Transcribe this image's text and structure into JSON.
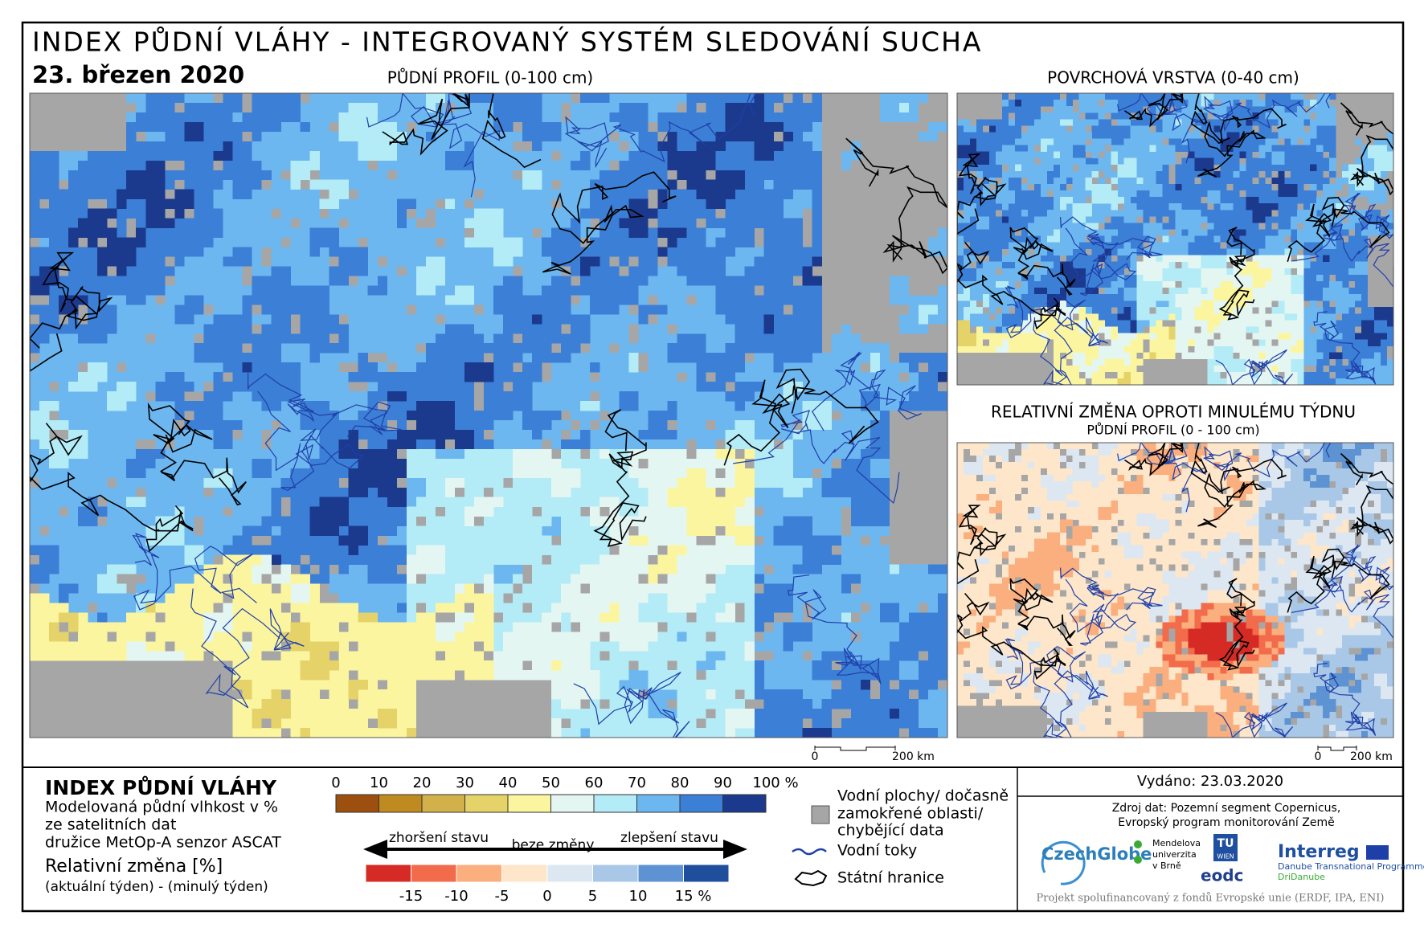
{
  "header": {
    "title": "INDEX PŮDNÍ VLÁHY - INTEGROVANÝ SYSTÉM SLEDOVÁNÍ SUCHA",
    "date": "23. březen 2020"
  },
  "panels": [
    {
      "title": "PŮDNÍ PROFIL (0-100 cm)"
    },
    {
      "title": "POVRCHOVÁ VRSTVA (0-40 cm)"
    },
    {
      "title": "RELATIVNÍ ZMĚNA OPROTI MINULÉMU TÝDNU",
      "subtitle": "PŮDNÍ PROFIL (0 - 100 cm)"
    }
  ],
  "scalebars": [
    {
      "start": "0",
      "end": "200 km"
    },
    {
      "start": "0",
      "end": "200 km"
    }
  ],
  "legend": {
    "title": "INDEX PŮDNÍ VLÁHY",
    "description": [
      "Modelovaná půdní vlhkost v %",
      "ze satelitních dat",
      "družice MetOp-A senzor ASCAT"
    ],
    "change_title": "Relativní změna [%]",
    "change_description": "(aktuální týden) - (minulý týden)",
    "index_scale": {
      "ticks": [
        "0",
        "10",
        "20",
        "30",
        "40",
        "50",
        "60",
        "70",
        "80",
        "90",
        "100 %"
      ],
      "colors": [
        "#9c4f0f",
        "#bf8a1f",
        "#d2b04a",
        "#e5d36a",
        "#fbf5a0",
        "#e4f6f2",
        "#b3ebf6",
        "#6db7f0",
        "#3c7fd6",
        "#1b3a8e"
      ]
    },
    "change_scale": {
      "ticks": [
        "-15",
        "-10",
        "-5",
        "0",
        "5",
        "10",
        "15 %"
      ],
      "colors": [
        "#d62a25",
        "#f26b4a",
        "#fbae7e",
        "#fde6ca",
        "#dde7f2",
        "#a9c8e8",
        "#5d93d2",
        "#1f4f9c"
      ],
      "worse": "zhoršení stavu",
      "none": "beze změny",
      "better": "zlepšení stavu"
    },
    "items": [
      {
        "lines": [
          "Vodní plochy/ dočasně",
          "zamokřené oblasti/",
          "chybějící data"
        ]
      },
      {
        "lines": [
          "Vodní toky"
        ]
      },
      {
        "lines": [
          "Státní hranice"
        ]
      }
    ]
  },
  "info": {
    "issued": "Vydáno: 23.03.2020",
    "source": [
      "Zdroj dat: Pozemní segment Copernicus,",
      "Evropský program monitorování Země"
    ],
    "logos": [
      "CzechGlobe",
      "Mendelova",
      "univerzita",
      "v Brně",
      "TU",
      "WIEN",
      "eodc",
      "Interreg",
      "Danube Transnational Programme",
      "DriDanube"
    ],
    "footer": "Projekt spolufinancovaný z fondů Evropské unie (ERDF, IPA, ENI)"
  }
}
